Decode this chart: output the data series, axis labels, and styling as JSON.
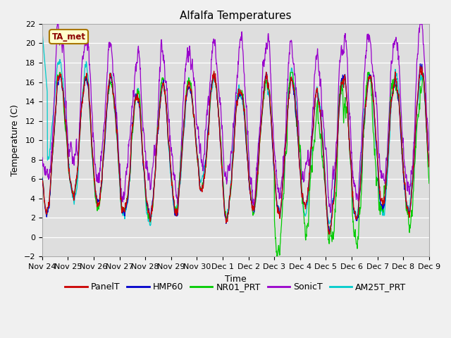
{
  "title": "Alfalfa Temperatures",
  "xlabel": "Time",
  "ylabel": "Temperature (C)",
  "ylim": [
    -2,
    22
  ],
  "xtick_labels": [
    "Nov 24",
    "Nov 25",
    "Nov 26",
    "Nov 27",
    "Nov 28",
    "Nov 29",
    "Nov 30",
    "Dec 1",
    "Dec 2",
    "Dec 3",
    "Dec 4",
    "Dec 5",
    "Dec 6",
    "Dec 7",
    "Dec 8",
    "Dec 9"
  ],
  "series_colors": {
    "PanelT": "#cc0000",
    "HMP60": "#0000cc",
    "NR01_PRT": "#00cc00",
    "SonicT": "#9900cc",
    "AM25T_PRT": "#00cccc"
  },
  "legend_label": "TA_met",
  "n_points": 1440,
  "title_fontsize": 11,
  "axis_fontsize": 9,
  "legend_fontsize": 9,
  "bg_color": "#dedede",
  "fig_color": "#f0f0f0"
}
